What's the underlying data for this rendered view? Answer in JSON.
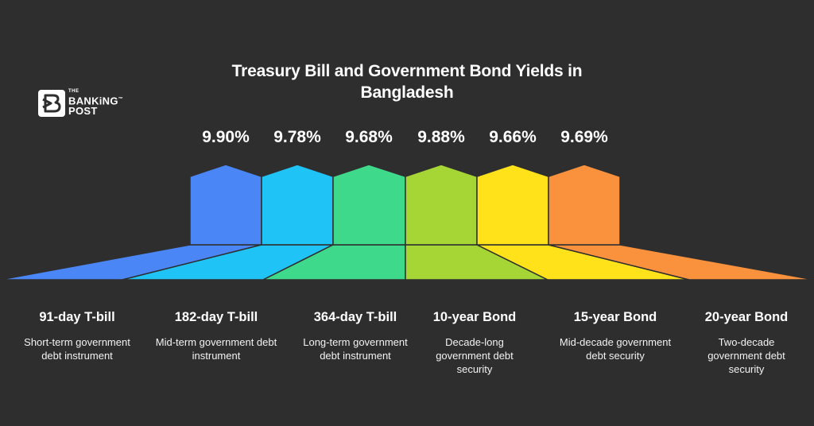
{
  "title": "Treasury Bill and Government Bond Yields in Bangladesh",
  "logo": {
    "the": "THE",
    "banking": "BANKiNG",
    "tm": "™",
    "post": "POST"
  },
  "colors": {
    "background": "#2e2e2e",
    "blue": "#4a86f5",
    "cyan": "#1fc3f5",
    "green": "#3fd98c",
    "lime": "#a6d636",
    "yellow": "#ffe21a",
    "orange": "#fa913d"
  },
  "instruments": [
    {
      "yield": "9.90%",
      "label": "91-day T-bill",
      "description": "Short-term government debt instrument",
      "color": "#4a86f5"
    },
    {
      "yield": "9.78%",
      "label": "182-day T-bill",
      "description": "Mid-term government debt instrument",
      "color": "#1fc3f5"
    },
    {
      "yield": "9.68%",
      "label": "364-day T-bill",
      "description": "Long-term government debt instrument",
      "color": "#3fd98c"
    },
    {
      "yield": "9.88%",
      "label": "10-year Bond",
      "description": "Decade-long government debt security",
      "color": "#a6d636"
    },
    {
      "yield": "9.66%",
      "label": "15-year Bond",
      "description": "Mid-decade government debt security",
      "color": "#ffe21a"
    },
    {
      "yield": "9.69%",
      "label": "20-year Bond",
      "description": "Two-decade government debt security",
      "color": "#fa913d"
    }
  ]
}
